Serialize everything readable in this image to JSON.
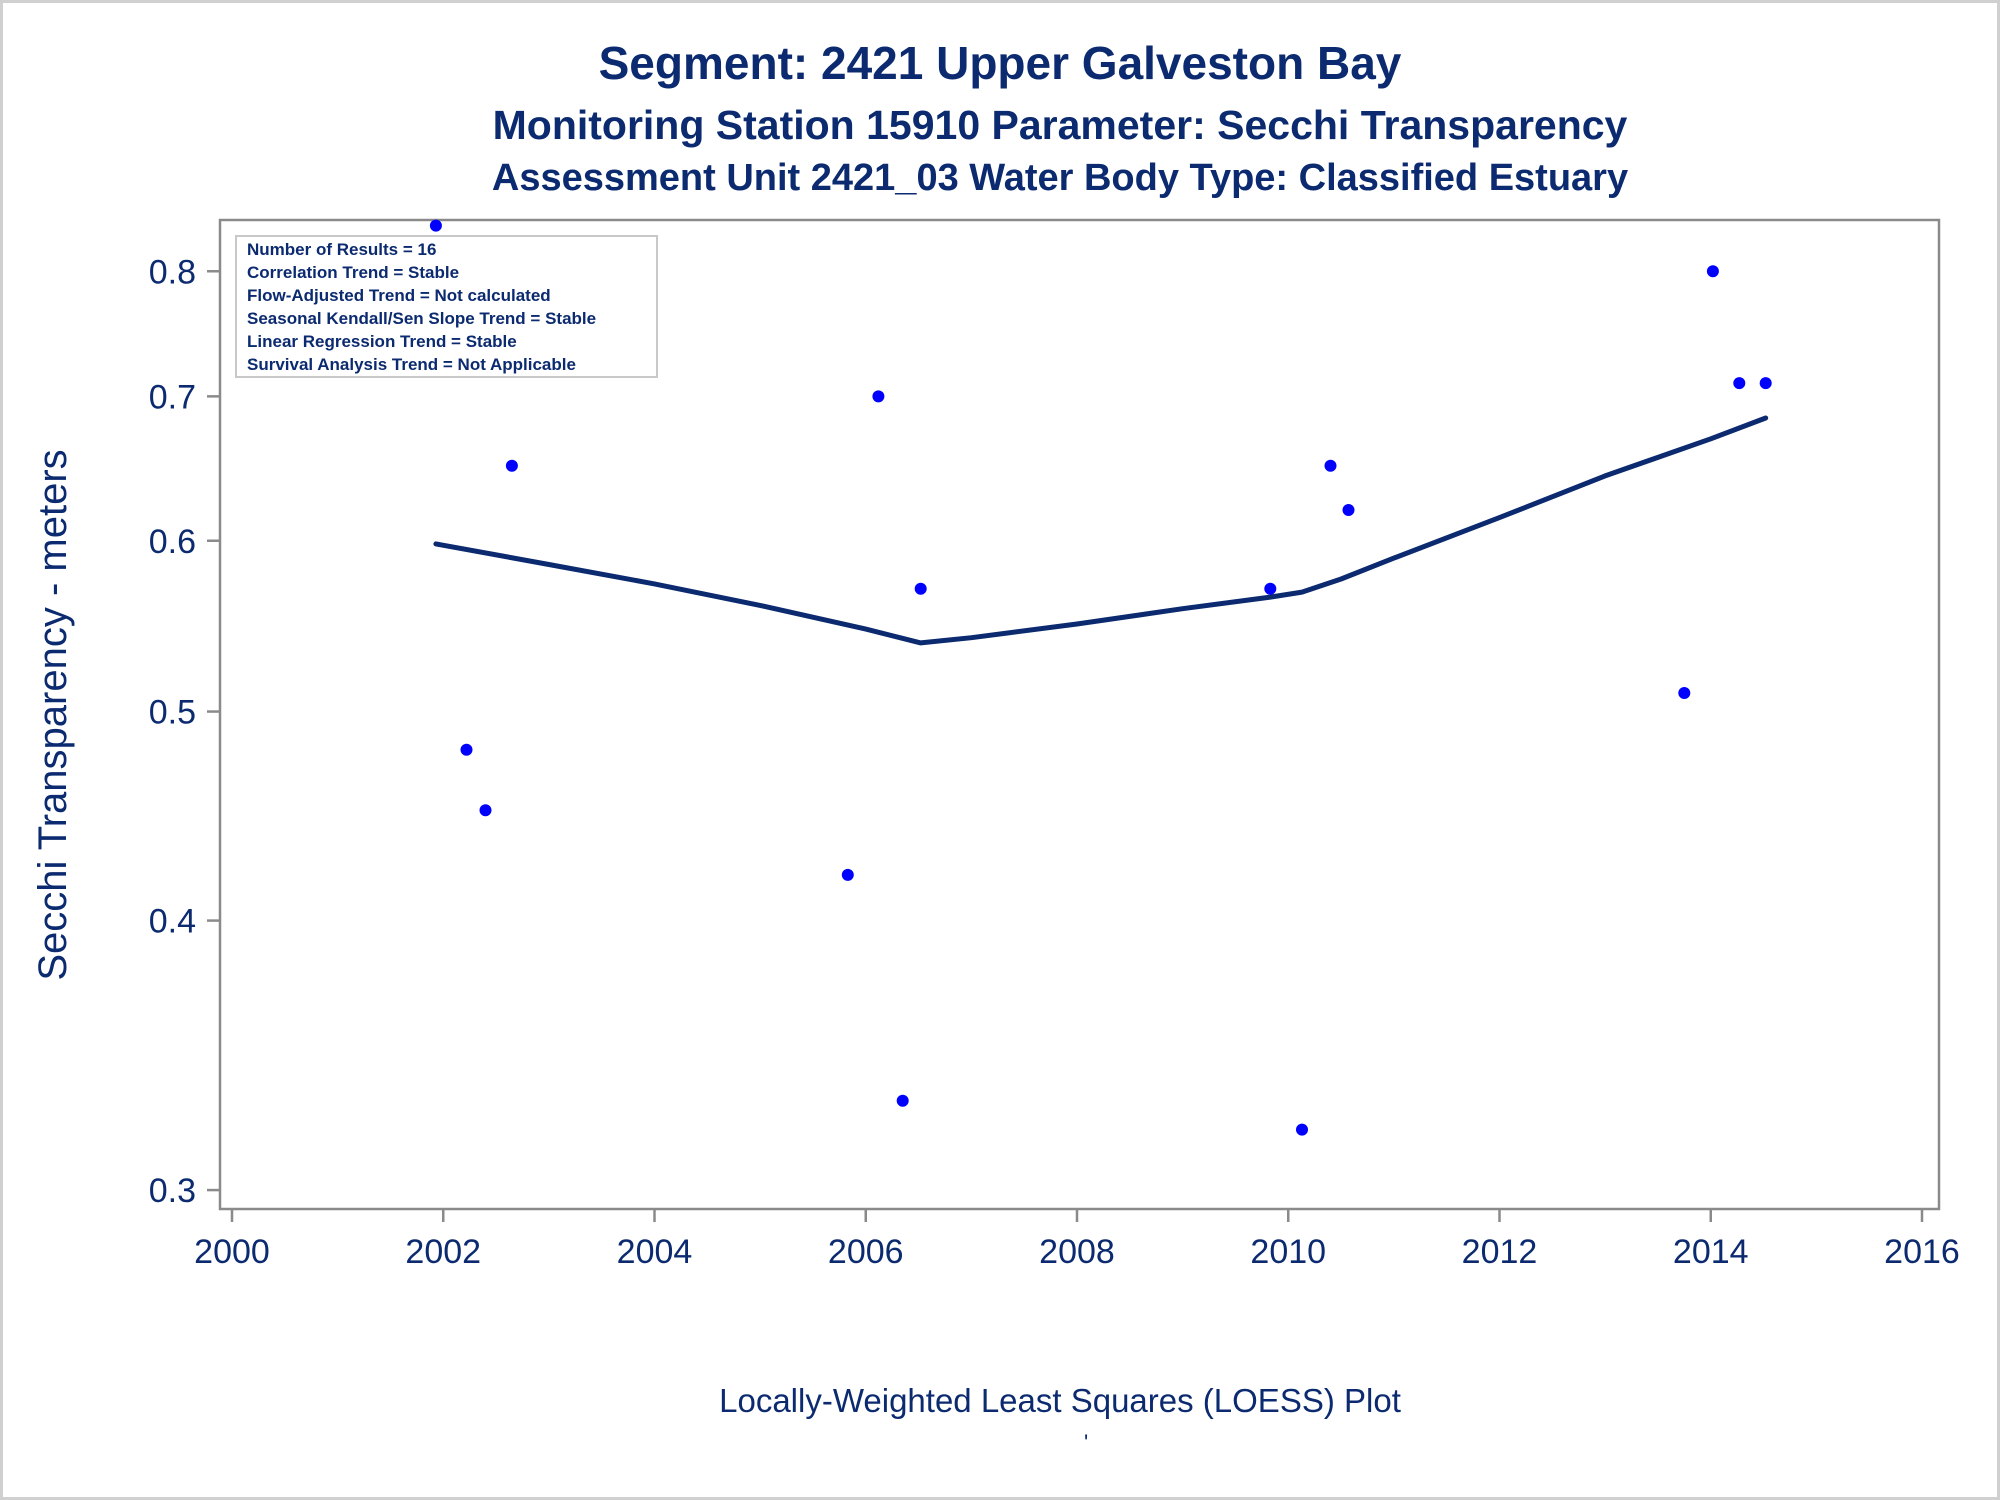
{
  "titles": {
    "line1": "Segment: 2421  Upper Galveston Bay",
    "line2": "Monitoring Station 15910 Parameter: Secchi Transparency",
    "line3": "Assessment Unit 2421_03   Water Body Type: Classified Estuary"
  },
  "footnote": "Locally-Weighted Least Squares (LOESS) Plot",
  "footnote_mark": "'",
  "legend": {
    "items": [
      "Number of Results = 16",
      "Correlation Trend = Stable",
      "Flow-Adjusted Trend = Not calculated",
      "Seasonal Kendall/Sen Slope Trend = Stable",
      "Linear Regression Trend = Stable",
      "Survival Analysis Trend = Not Applicable"
    ]
  },
  "colors": {
    "text": "#0b2a6f",
    "points": "#0000ff",
    "line": "#0b2a6f",
    "axis": "#8a8a8a"
  },
  "chart_data": {
    "type": "scatter",
    "title": "Segment: 2421  Upper Galveston Bay",
    "xlabel": "",
    "ylabel": "Secchi Transparency - meters",
    "xscale": "linear",
    "yscale": "log",
    "xlim": [
      2000,
      2016
    ],
    "ylim": [
      0.294,
      0.845
    ],
    "xticks": [
      2000,
      2002,
      2004,
      2006,
      2008,
      2010,
      2012,
      2014,
      2016
    ],
    "yticks": [
      0.3,
      0.4,
      0.5,
      0.6,
      0.7,
      0.8
    ],
    "ytick_labels": [
      "0.3",
      "0.4",
      "0.5",
      "0.6",
      "0.7",
      "0.8"
    ],
    "grid": false,
    "legend_position": "top-left",
    "series": [
      {
        "kind": "points",
        "x": [
          2001.93,
          2002.22,
          2002.4,
          2002.65,
          2005.83,
          2006.12,
          2006.35,
          2006.52,
          2009.83,
          2010.13,
          2010.4,
          2010.57,
          2013.75,
          2014.02,
          2014.27,
          2014.52
        ],
        "y": [
          0.84,
          0.48,
          0.45,
          0.65,
          0.42,
          0.7,
          0.33,
          0.57,
          0.57,
          0.32,
          0.65,
          0.62,
          0.51,
          0.8,
          0.71,
          0.71
        ]
      },
      {
        "kind": "loess",
        "x": [
          2001.93,
          2003.0,
          2004.0,
          2005.0,
          2006.0,
          2006.52,
          2007.0,
          2008.0,
          2009.0,
          2009.83,
          2010.13,
          2010.5,
          2011.0,
          2012.0,
          2013.0,
          2014.0,
          2014.52
        ],
        "y": [
          0.598,
          0.585,
          0.573,
          0.56,
          0.546,
          0.538,
          0.541,
          0.549,
          0.558,
          0.565,
          0.568,
          0.576,
          0.589,
          0.615,
          0.643,
          0.669,
          0.684
        ]
      }
    ]
  }
}
